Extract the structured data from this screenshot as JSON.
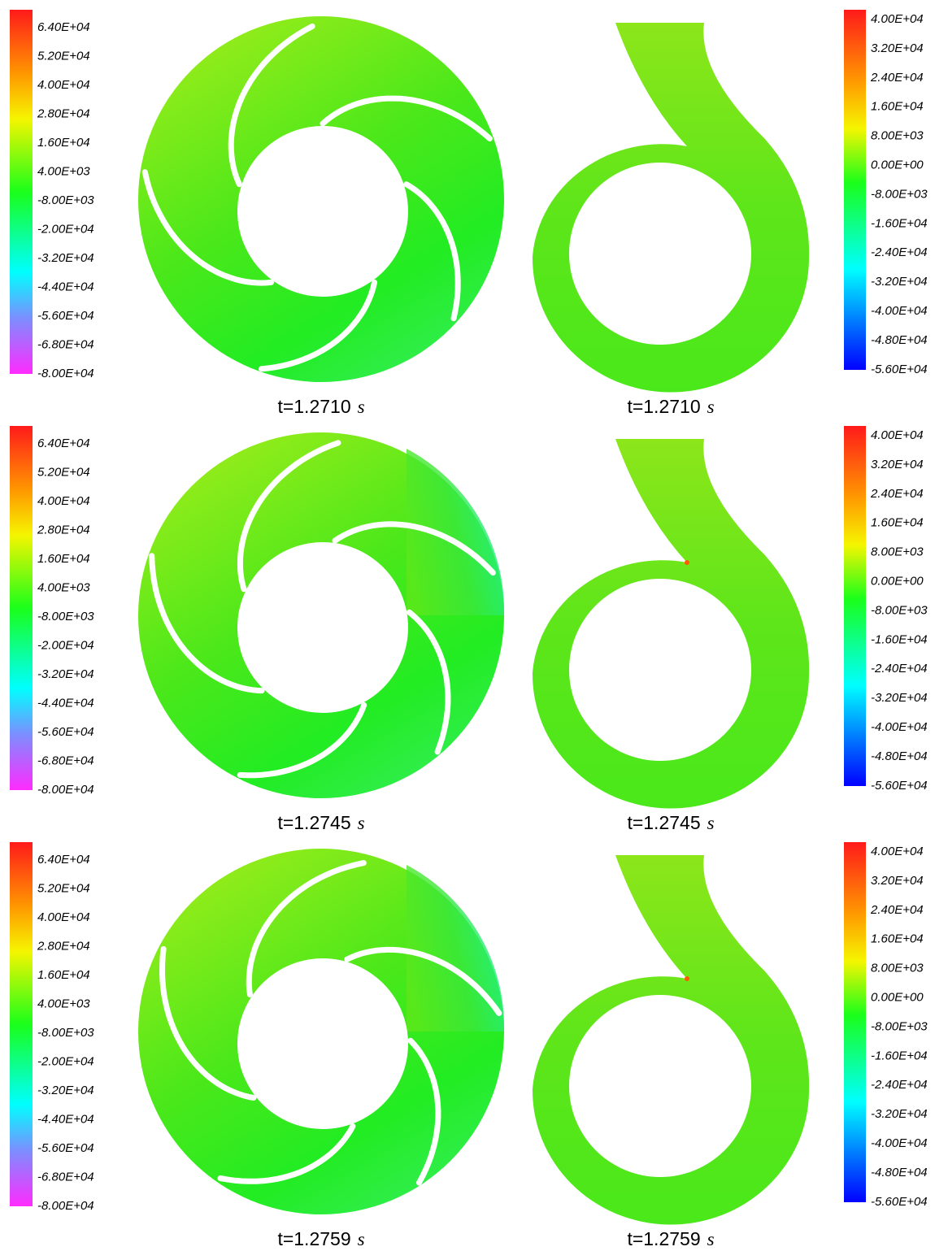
{
  "panels": [
    {
      "impeller_scale": [
        "6.40E+04",
        "5.20E+04",
        "4.00E+04",
        "2.80E+04",
        "1.60E+04",
        "4.00E+03",
        "-8.00E+03",
        "-2.00E+04",
        "-3.20E+04",
        "-4.40E+04",
        "-5.60E+04",
        "-6.80E+04",
        "-8.00E+04"
      ],
      "volute_scale": [
        "4.00E+04",
        "3.20E+04",
        "2.40E+04",
        "1.60E+04",
        "8.00E+03",
        "0.00E+00",
        "-8.00E+03",
        "-1.60E+04",
        "-2.40E+04",
        "-3.20E+04",
        "-4.00E+04",
        "-4.80E+04",
        "-5.60E+04"
      ],
      "impeller_caption": {
        "time": "t=1.2710",
        "unit": "s"
      },
      "volute_caption": {
        "time": "t=1.2710",
        "unit": "s"
      }
    },
    {
      "impeller_scale": [
        "6.40E+04",
        "5.20E+04",
        "4.00E+04",
        "2.80E+04",
        "1.60E+04",
        "4.00E+03",
        "-8.00E+03",
        "-2.00E+04",
        "-3.20E+04",
        "-4.40E+04",
        "-5.60E+04",
        "-6.80E+04",
        "-8.00E+04"
      ],
      "volute_scale": [
        "4.00E+04",
        "3.20E+04",
        "2.40E+04",
        "1.60E+04",
        "8.00E+03",
        "0.00E+00",
        "-8.00E+03",
        "-1.60E+04",
        "-2.40E+04",
        "-3.20E+04",
        "-4.00E+04",
        "-4.80E+04",
        "-5.60E+04"
      ],
      "impeller_caption": {
        "time": "t=1.2745",
        "unit": "s"
      },
      "volute_caption": {
        "time": "t=1.2745",
        "unit": "s"
      }
    },
    {
      "impeller_scale": [
        "6.40E+04",
        "5.20E+04",
        "4.00E+04",
        "2.80E+04",
        "1.60E+04",
        "4.00E+03",
        "-8.00E+03",
        "-2.00E+04",
        "-3.20E+04",
        "-4.40E+04",
        "-5.60E+04",
        "-6.80E+04",
        "-8.00E+04"
      ],
      "volute_scale": [
        "4.00E+04",
        "3.20E+04",
        "2.40E+04",
        "1.60E+04",
        "8.00E+03",
        "0.00E+00",
        "-8.00E+03",
        "-1.60E+04",
        "-2.40E+04",
        "-3.20E+04",
        "-4.00E+04",
        "-4.80E+04",
        "-5.60E+04"
      ],
      "impeller_caption": {
        "time": "t=1.2759",
        "unit": "s"
      },
      "volute_caption": {
        "time": "t=1.2759",
        "unit": "s"
      }
    }
  ]
}
